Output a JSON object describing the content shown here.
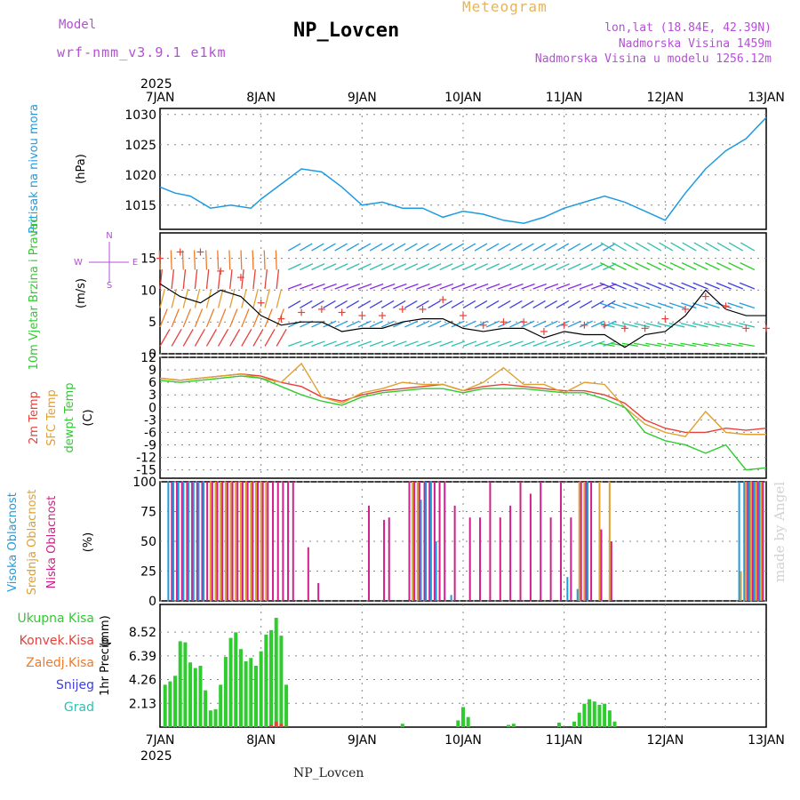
{
  "header": {
    "meteogram_label": "Meteogram",
    "station": "NP_Lovcen",
    "model_label": "Model",
    "model_name": "wrf-nmm_v3.9.1 e1km",
    "lonlat": "lon,lat (18.84E, 42.39N)",
    "altitude": "Nadmorska Visina 1459m",
    "altitude_model": "Nadmorska Visina u modelu 1256.12m"
  },
  "footer": {
    "station": "NP_Lovcen",
    "made_by": "made by Angel"
  },
  "colors": {
    "pressure": "#1e9be0",
    "label_pressure": "#1e9be0",
    "wind_green": "#2ecc2e",
    "purple": "#b44fd6",
    "meteogram": "#e5b45a",
    "temp2m": "#e8403a",
    "sfc": "#e0a030",
    "dew": "#2ecc2e",
    "cloud_high": "#1e9be0",
    "cloud_mid": "#e0a030",
    "cloud_low": "#d0208a",
    "precip": "#2ecc2e",
    "conv": "#e8403a",
    "frz": "#f07a28",
    "snow": "#4040e0",
    "graupel": "#30c0b0"
  },
  "time_axis": {
    "year": "2025",
    "days": [
      "7JAN",
      "8JAN",
      "9JAN",
      "10JAN",
      "11JAN",
      "12JAN",
      "13JAN"
    ]
  },
  "chart_data": [
    {
      "type": "line",
      "title": "",
      "ylabel": "Pritisak na nivou mora",
      "unit": "(hPa)",
      "ylim": [
        1011,
        1031
      ],
      "yticks": [
        1015,
        1020,
        1025,
        1030
      ],
      "grid": true,
      "x": [
        0,
        0.15,
        0.3,
        0.5,
        0.7,
        0.9,
        1.0,
        1.2,
        1.4,
        1.6,
        1.8,
        2.0,
        2.2,
        2.4,
        2.6,
        2.8,
        3.0,
        3.2,
        3.4,
        3.6,
        3.8,
        4.0,
        4.2,
        4.4,
        4.6,
        4.8,
        5.0,
        5.2,
        5.4,
        5.6,
        5.8,
        6.0
      ],
      "series": [
        {
          "name": "",
          "values": [
            1018,
            1017,
            1016.5,
            1014.5,
            1015,
            1014.5,
            1016,
            1018.5,
            1021,
            1020.5,
            1018,
            1015,
            1015.5,
            1014.5,
            1014.5,
            1013,
            1014,
            1013.5,
            1012.5,
            1012,
            1013,
            1014.5,
            1015.5,
            1016.5,
            1015.5,
            1014,
            1012.5,
            1017,
            1021,
            1024,
            1026,
            1029.5
          ]
        }
      ]
    },
    {
      "type": "line",
      "ylabel": "10m Vjetar Brzina i Pravac",
      "unit": "(m/s)",
      "ylim": [
        0,
        19
      ],
      "yticks": [
        0,
        5,
        10,
        15
      ],
      "compass": {
        "n": "N",
        "e": "E",
        "w": "W",
        "s": "S"
      },
      "grid": true,
      "x": [
        0,
        0.2,
        0.4,
        0.6,
        0.8,
        1.0,
        1.2,
        1.4,
        1.6,
        1.8,
        2.0,
        2.2,
        2.4,
        2.6,
        2.8,
        3.0,
        3.2,
        3.4,
        3.6,
        3.8,
        4.0,
        4.2,
        4.4,
        4.6,
        4.8,
        5.0,
        5.2,
        5.4,
        5.6,
        5.8,
        6.0
      ],
      "series": [
        {
          "name": "",
          "values": [
            11,
            9,
            8,
            10,
            9,
            6,
            4.5,
            5,
            5,
            3.5,
            4,
            4,
            5,
            5.5,
            5.5,
            4,
            3.5,
            4,
            4,
            2.5,
            3.5,
            3,
            3,
            1,
            3,
            3.5,
            6,
            10,
            7,
            6,
            6
          ]
        },
        {
          "name": "",
          "values": [
            15,
            16,
            16,
            13,
            12,
            8,
            5.5,
            6.5,
            7,
            6.5,
            6,
            6,
            7,
            7,
            8.5,
            6,
            4.5,
            5,
            5,
            3.5,
            4.5,
            4.5,
            4.5,
            4,
            4,
            5.5,
            7,
            9,
            7.5,
            4,
            4
          ]
        }
      ]
    },
    {
      "type": "line",
      "ylabel": "2m Temp / SFC Temp / dewpt Temp",
      "unit": "(C)",
      "ylim": [
        -17,
        12
      ],
      "yticks": [
        12,
        9,
        6,
        3,
        0,
        -3,
        -6,
        -9,
        -12,
        -15
      ],
      "grid": true,
      "x": [
        0,
        0.2,
        0.4,
        0.6,
        0.8,
        1.0,
        1.2,
        1.4,
        1.6,
        1.8,
        2.0,
        2.2,
        2.4,
        2.6,
        2.8,
        3.0,
        3.2,
        3.4,
        3.6,
        3.8,
        4.0,
        4.2,
        4.4,
        4.6,
        4.8,
        5.0,
        5.2,
        5.4,
        5.6,
        5.8,
        6.0
      ],
      "series": [
        {
          "name": "2m Temp",
          "values": [
            7,
            6.5,
            7,
            7.5,
            8,
            7.5,
            6,
            5,
            2.5,
            1.5,
            3,
            4,
            4.5,
            5,
            5.5,
            4,
            5,
            5.5,
            5,
            4.5,
            4,
            4,
            3,
            1,
            -3,
            -5,
            -6,
            -6,
            -5,
            -5.5,
            -5
          ]
        },
        {
          "name": "SFC Temp",
          "values": [
            7,
            6.5,
            7,
            7.5,
            8,
            7,
            6,
            10.5,
            2.5,
            1,
            3.5,
            4.5,
            6,
            5.5,
            5.5,
            4,
            6,
            9.5,
            5.5,
            5.5,
            3.5,
            6,
            5.5,
            0,
            -4,
            -6,
            -7,
            -1,
            -6,
            -6.5,
            -6.5
          ]
        },
        {
          "name": "dewpt Temp",
          "values": [
            6.5,
            6,
            6.5,
            7,
            7.5,
            7,
            5,
            3,
            1.5,
            0.5,
            2.5,
            3.5,
            4,
            4.5,
            4.5,
            3.5,
            4.5,
            4.5,
            4.5,
            4,
            3.5,
            3.5,
            2,
            0,
            -6,
            -8,
            -9,
            -11,
            -9,
            -15,
            -14.5
          ]
        }
      ]
    },
    {
      "type": "bar",
      "ylabel": "Visoka Oblacnost / Srednja Oblacnost / Niska Oblacnost",
      "unit": "(%)",
      "ylim": [
        0,
        100
      ],
      "yticks": [
        0,
        25,
        50,
        75,
        100
      ],
      "grid": true,
      "x": [
        0.1,
        0.15,
        0.2,
        0.25,
        0.3,
        0.35,
        0.4,
        0.45,
        0.5,
        0.55,
        0.6,
        0.65,
        0.7,
        0.75,
        0.8,
        0.85,
        0.9,
        0.95,
        1.0,
        1.05,
        1.1,
        1.15,
        1.2,
        1.25,
        1.3,
        1.45,
        1.55,
        2.05,
        2.2,
        2.25,
        2.45,
        2.5,
        2.55,
        2.6,
        2.65,
        2.7,
        2.75,
        2.8,
        2.9,
        3.05,
        3.15,
        3.25,
        3.35,
        3.45,
        3.55,
        3.65,
        3.75,
        3.85,
        3.95,
        4.05,
        4.15,
        4.2,
        4.25,
        4.35,
        4.45,
        5.05,
        5.35,
        5.65,
        5.75,
        5.8,
        5.85,
        5.9,
        5.95
      ],
      "series": [
        {
          "name": "Visoka Oblacnost",
          "values": [
            100,
            100,
            100,
            100,
            100,
            100,
            100,
            100,
            0,
            0,
            0,
            0,
            0,
            0,
            0,
            0,
            0,
            0,
            0,
            0,
            0,
            0,
            0,
            0,
            0,
            0,
            0,
            0,
            0,
            0,
            0,
            0,
            0,
            85,
            100,
            100,
            50,
            0,
            5,
            0,
            0,
            0,
            0,
            0,
            0,
            0,
            0,
            0,
            0,
            20,
            10,
            0,
            100,
            0,
            0,
            0,
            0,
            0,
            100,
            100,
            100,
            100,
            100
          ]
        },
        {
          "name": "Srednja Oblacnost",
          "values": [
            0,
            0,
            0,
            0,
            0,
            0,
            0,
            0,
            100,
            100,
            100,
            100,
            100,
            100,
            100,
            100,
            100,
            100,
            100,
            100,
            0,
            0,
            0,
            0,
            0,
            0,
            0,
            0,
            0,
            0,
            0,
            100,
            100,
            0,
            0,
            0,
            0,
            0,
            0,
            0,
            0,
            0,
            0,
            0,
            0,
            0,
            0,
            0,
            0,
            0,
            100,
            100,
            0,
            100,
            100,
            0,
            0,
            0,
            25,
            100,
            100,
            100,
            100
          ]
        },
        {
          "name": "Niska Oblacnost",
          "values": [
            100,
            100,
            100,
            100,
            100,
            100,
            100,
            100,
            100,
            100,
            100,
            100,
            100,
            100,
            100,
            100,
            100,
            100,
            100,
            100,
            100,
            100,
            100,
            100,
            100,
            45,
            15,
            80,
            68,
            70,
            100,
            100,
            100,
            100,
            100,
            100,
            100,
            100,
            80,
            70,
            70,
            100,
            70,
            80,
            100,
            90,
            100,
            70,
            100,
            70,
            100,
            100,
            100,
            60,
            50,
            0,
            0,
            0,
            0,
            100,
            100,
            100,
            100
          ]
        }
      ]
    },
    {
      "type": "bar",
      "ylabel": "1hr Precip",
      "unit": "(mm)",
      "ylim": [
        0,
        11
      ],
      "yticks": [
        "2.13",
        "4.26",
        "6.39",
        "8.52"
      ],
      "grid": true,
      "series_labels": [
        "Ukupna Kisa",
        "Konvek.Kisa",
        "Zaledj.Kisa",
        "Snijeg",
        "Grad"
      ],
      "x": [
        0.05,
        0.1,
        0.15,
        0.2,
        0.25,
        0.3,
        0.35,
        0.4,
        0.45,
        0.5,
        0.55,
        0.6,
        0.65,
        0.7,
        0.75,
        0.8,
        0.85,
        0.9,
        0.95,
        1.0,
        1.05,
        1.1,
        1.15,
        1.2,
        1.25,
        2.4,
        2.95,
        3.0,
        3.05,
        3.45,
        3.5,
        3.95,
        4.1,
        4.15,
        4.2,
        4.25,
        4.3,
        4.35,
        4.4,
        4.45,
        4.5
      ],
      "series": [
        {
          "name": "Ukupna Kisa",
          "values": [
            3.8,
            4.1,
            4.6,
            7.7,
            7.6,
            5.8,
            5.3,
            5.5,
            3.3,
            1.5,
            1.6,
            3.8,
            6.3,
            8.0,
            8.5,
            7.0,
            5.9,
            6.2,
            5.5,
            6.8,
            8.3,
            8.7,
            9.8,
            8.2,
            3.8,
            0.3,
            0.6,
            1.8,
            0.9,
            0.2,
            0.3,
            0.4,
            0.5,
            1.3,
            2.1,
            2.5,
            2.3,
            2.0,
            2.1,
            1.5,
            0.5
          ]
        },
        {
          "name": "Konvek.Kisa",
          "values": [
            0,
            0,
            0,
            0,
            0,
            0,
            0,
            0,
            0,
            0,
            0,
            0,
            0,
            0,
            0,
            0,
            0,
            0,
            0,
            0,
            0,
            0.2,
            0.5,
            0.3,
            0.1,
            0,
            0,
            0,
            0,
            0,
            0,
            0,
            0,
            0,
            0,
            0,
            0,
            0,
            0,
            0,
            0
          ]
        }
      ]
    }
  ]
}
